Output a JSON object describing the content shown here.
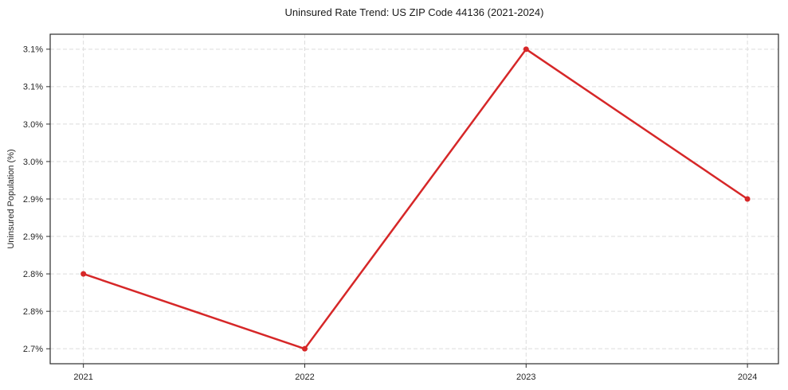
{
  "figure": {
    "background": "#ffffff"
  },
  "chart_data": {
    "type": "line",
    "title": "Uninsured Rate Trend: US ZIP Code 44136 (2021-2024)",
    "xlabel": "",
    "ylabel": "Uninsured Population (%)",
    "x": [
      2021,
      2022,
      2023,
      2024
    ],
    "x_tick_labels": [
      "2021",
      "2022",
      "2023",
      "2024"
    ],
    "series": [
      {
        "name": "uninsured-rate",
        "values": [
          2.8,
          2.7,
          3.1,
          2.9
        ],
        "color": "#d62728",
        "marker": "circle",
        "line_width": 2.5,
        "marker_radius": 3.5
      }
    ],
    "y_ticks": {
      "values": [
        2.7,
        2.75,
        2.8,
        2.85,
        2.9,
        2.95,
        3.0,
        3.05,
        3.1
      ],
      "labels": [
        "2.7%",
        "2.8%",
        "2.8%",
        "2.9%",
        "2.9%",
        "3.0%",
        "3.0%",
        "3.1%",
        "3.1%"
      ]
    },
    "xlim": [
      2020.85,
      2024.14
    ],
    "ylim": [
      2.68,
      3.12
    ],
    "grid": {
      "visible": true,
      "style": "dashed",
      "color": "#dcdcdc"
    },
    "axis_color": "#2b2b2b",
    "tick_label_color": "#262626",
    "legend": "none"
  }
}
